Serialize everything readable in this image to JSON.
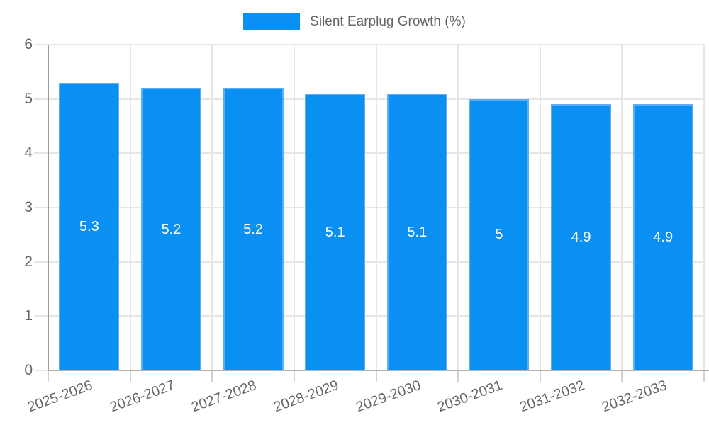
{
  "chart_data": {
    "type": "bar",
    "title": "Silent Earplug Growth (%)",
    "categories": [
      "2025-2026",
      "2026-2027",
      "2027-2028",
      "2028-2029",
      "2029-2030",
      "2030-2031",
      "2031-2032",
      "2032-2033"
    ],
    "values": [
      5.3,
      5.2,
      5.2,
      5.1,
      5.1,
      5,
      4.9,
      4.9
    ],
    "value_labels": [
      "5.3",
      "5.2",
      "5.2",
      "5.1",
      "5.1",
      "5",
      "4.9",
      "4.9"
    ],
    "xlabel": "",
    "ylabel": "",
    "ylim": [
      0,
      6
    ],
    "yticks": [
      0,
      1,
      2,
      3,
      4,
      5,
      6
    ],
    "grid": true,
    "legend_position": "top",
    "colors": {
      "bar_fill": "#0A8FF2",
      "bar_border": "#5FACF7",
      "value_label": "#ffffff",
      "axis_text": "#666666",
      "gridline": "#e6e6e6",
      "tick_line": "#d2d2d2",
      "x_axis_line": "#b3b3b3",
      "y_axis_line": "#9c9c9c"
    }
  }
}
